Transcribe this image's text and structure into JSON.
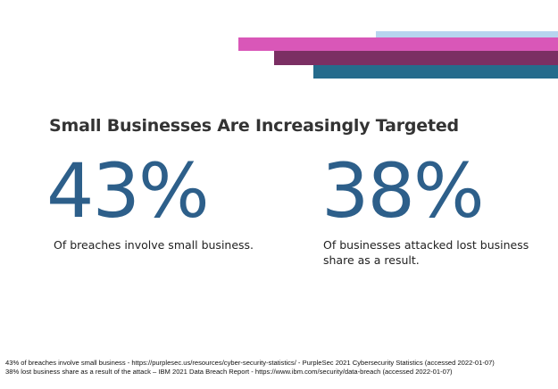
{
  "colors": {
    "bar_light_blue": "#b7d4ef",
    "bar_pink": "#d957b8",
    "bar_plum": "#7b2f63",
    "bar_teal": "#256b8c",
    "stat_color": "#2d5f8a"
  },
  "slide": {
    "title": "Small Businesses Are Increasingly Targeted",
    "stats": [
      {
        "value": "43%",
        "caption": "Of breaches involve small business."
      },
      {
        "value": "38%",
        "caption": "Of businesses attacked lost business share as a result."
      }
    ],
    "sources": [
      "43% of breaches involve small business - https://purplesec.us/resources/cyber-security-statistics/ - PurpleSec 2021 Cybersecurity Statistics (accessed 2022-01-07)",
      "38% lost business share as a result of the attack – IBM 2021 Data Breach Report - https://www.ibm.com/security/data-breach (accessed 2022-01-07)"
    ]
  }
}
